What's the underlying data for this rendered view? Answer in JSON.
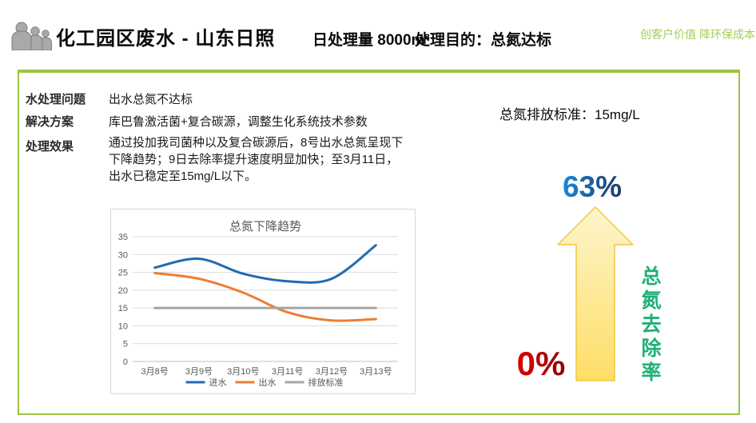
{
  "header": {
    "icon": "people-group-icon",
    "title": "化工园区废水 - 山东日照",
    "daily_capacity": "日处理量 8000m³",
    "purpose": "处理目的：总氮达标",
    "slogan": "创客户价值 降环保成本",
    "slogan_color": "#a5ce55"
  },
  "panel": {
    "border_color": "#9cc43f",
    "rows": [
      {
        "label": "水处理问题",
        "value": "出水总氮不达标"
      },
      {
        "label": "解决方案",
        "value": "库巴鲁激活菌+复合碳源，调整生化系统技术参数"
      },
      {
        "label": "处理效果",
        "value": "通过投加我司菌种以及复合碳源后，8号出水总氮呈现下\n下降趋势；9日去除率提升速度明显加快；至3月11日，\n出水已稳定至15mg/L以下。"
      }
    ],
    "standard_note": "总氮排放标准：15mg/L"
  },
  "removal": {
    "top_value": "63%",
    "top_gradient": [
      "#1a86d8",
      "#1f3864"
    ],
    "bottom_value": "0%",
    "bottom_gradient": [
      "#e00000",
      "#8d0404"
    ],
    "axis_label": "总氮去除率",
    "axis_label_color": "#1fb173",
    "arrow_gradient": [
      "#fdf5cc",
      "#ffde66"
    ],
    "arrow_stroke": "#edc843"
  },
  "chart_data": {
    "type": "line",
    "title": "总氮下降趋势",
    "title_color": "#595959",
    "categories": [
      "3月8号",
      "3月9号",
      "3月10号",
      "3月11号",
      "3月12号",
      "3月13号"
    ],
    "series": [
      {
        "name": "进水",
        "color": "#1f6bb2",
        "smooth": true,
        "values": [
          26.3,
          28.8,
          24.6,
          22.5,
          23.2,
          32.6
        ]
      },
      {
        "name": "出水",
        "color": "#ed7d31",
        "smooth": true,
        "values": [
          24.8,
          23.2,
          19.3,
          13.8,
          11.5,
          11.9
        ]
      },
      {
        "name": "排放标准",
        "color": "#a5a5a5",
        "smooth": false,
        "values": [
          15,
          15,
          15,
          15,
          15,
          15
        ]
      }
    ],
    "ylim": [
      0,
      35
    ],
    "ytick_step": 5,
    "grid": true,
    "grid_color": "#d9d9d9",
    "tick_color": "#595959",
    "legend_position": "bottom"
  }
}
